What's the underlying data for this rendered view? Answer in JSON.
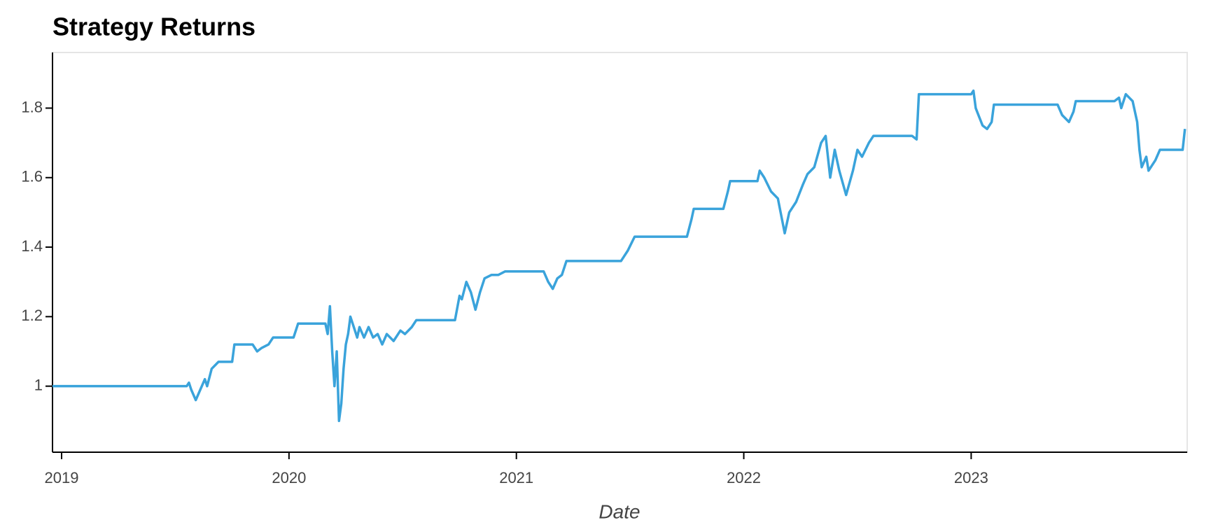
{
  "chart_data": {
    "type": "line",
    "title": "Strategy Returns",
    "xlabel": "Date",
    "color": "#3aa3db",
    "x": [
      2018.96,
      2019.55,
      2019.56,
      2019.57,
      2019.59,
      2019.61,
      2019.63,
      2019.64,
      2019.66,
      2019.69,
      2019.75,
      2019.76,
      2019.84,
      2019.86,
      2019.88,
      2019.91,
      2019.93,
      2020.02,
      2020.04,
      2020.16,
      2020.17,
      2020.18,
      2020.19,
      2020.2,
      2020.21,
      2020.22,
      2020.23,
      2020.24,
      2020.25,
      2020.26,
      2020.27,
      2020.3,
      2020.31,
      2020.33,
      2020.35,
      2020.37,
      2020.39,
      2020.41,
      2020.43,
      2020.46,
      2020.49,
      2020.51,
      2020.54,
      2020.56,
      2020.73,
      2020.75,
      2020.76,
      2020.78,
      2020.8,
      2020.82,
      2020.84,
      2020.86,
      2020.89,
      2020.92,
      2020.95,
      2021.12,
      2021.14,
      2021.16,
      2021.18,
      2021.2,
      2021.22,
      2021.46,
      2021.49,
      2021.52,
      2021.74,
      2021.75,
      2021.77,
      2021.78,
      2021.91,
      2021.93,
      2021.94,
      2022.06,
      2022.07,
      2022.09,
      2022.12,
      2022.15,
      2022.18,
      2022.2,
      2022.23,
      2022.26,
      2022.28,
      2022.31,
      2022.34,
      2022.36,
      2022.38,
      2022.4,
      2022.42,
      2022.45,
      2022.48,
      2022.5,
      2022.52,
      2022.55,
      2022.57,
      2022.74,
      2022.76,
      2022.77,
      2023.0,
      2023.01,
      2023.02,
      2023.05,
      2023.07,
      2023.09,
      2023.1,
      2023.38,
      2023.4,
      2023.43,
      2023.45,
      2023.46,
      2023.63,
      2023.65,
      2023.66,
      2023.68,
      2023.71,
      2023.73,
      2023.74,
      2023.75,
      2023.77,
      2023.78,
      2023.81,
      2023.83,
      2023.93,
      2023.94
    ],
    "values": [
      1.0,
      1.0,
      1.01,
      0.99,
      0.96,
      0.99,
      1.02,
      1.0,
      1.05,
      1.07,
      1.07,
      1.12,
      1.12,
      1.1,
      1.11,
      1.12,
      1.14,
      1.14,
      1.18,
      1.18,
      1.15,
      1.23,
      1.1,
      1.0,
      1.1,
      0.9,
      0.95,
      1.05,
      1.12,
      1.15,
      1.2,
      1.14,
      1.17,
      1.14,
      1.17,
      1.14,
      1.15,
      1.12,
      1.15,
      1.13,
      1.16,
      1.15,
      1.17,
      1.19,
      1.19,
      1.26,
      1.25,
      1.3,
      1.27,
      1.22,
      1.27,
      1.31,
      1.32,
      1.32,
      1.33,
      1.33,
      1.3,
      1.28,
      1.31,
      1.32,
      1.36,
      1.36,
      1.39,
      1.43,
      1.43,
      1.43,
      1.48,
      1.51,
      1.51,
      1.56,
      1.59,
      1.59,
      1.62,
      1.6,
      1.56,
      1.54,
      1.44,
      1.5,
      1.53,
      1.58,
      1.61,
      1.63,
      1.7,
      1.72,
      1.6,
      1.68,
      1.62,
      1.55,
      1.62,
      1.68,
      1.66,
      1.7,
      1.72,
      1.72,
      1.71,
      1.84,
      1.84,
      1.85,
      1.8,
      1.75,
      1.74,
      1.76,
      1.81,
      1.81,
      1.78,
      1.76,
      1.79,
      1.82,
      1.82,
      1.83,
      1.8,
      1.84,
      1.82,
      1.76,
      1.68,
      1.63,
      1.66,
      1.62,
      1.65,
      1.68,
      1.68,
      1.74
    ],
    "xlim": [
      2018.96,
      2023.95
    ],
    "xticks": [
      2019,
      2020,
      2021,
      2022,
      2023
    ],
    "ylim": [
      0.81,
      1.96
    ],
    "yticks": [
      1,
      1.2,
      1.4,
      1.6,
      1.8
    ]
  }
}
